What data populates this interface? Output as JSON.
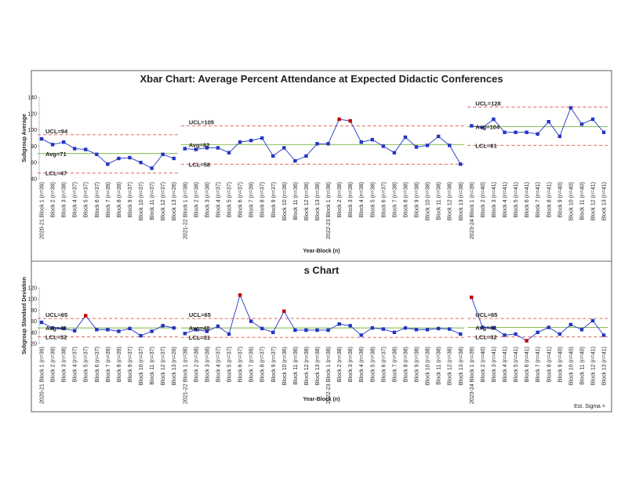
{
  "chart_data": [
    {
      "type": "line",
      "title": "Xbar Chart: Average Percent Attendance at Expected Didactic Conferences",
      "y_label": "Subgroup Average",
      "x_label": "Year-Block (n)",
      "ylim": [
        40,
        140
      ],
      "yticks": [
        40,
        60,
        80,
        100,
        120,
        140
      ],
      "color": "#2236c4",
      "flag_color": "#c00000",
      "limit_color": "#d9534f",
      "avg_color": "#7cb342",
      "segments": [
        {
          "categories": [
            "2020-21 Block 1 (n=39)",
            "Block 2 (n=39)",
            "Block 3 (n=38)",
            "Block 4 (n=37)",
            "Block 5 (n=37)",
            "Block 6 (n=37)",
            "Block 7 (n=39)",
            "Block 8 (n=39)",
            "Block 9 (n=37)",
            "Block 10 (n=37)",
            "Block 11 (n=37)",
            "Block 12 (n=37)",
            "Block 13 (n=26)"
          ],
          "values": [
            89,
            82,
            85,
            77,
            76,
            70,
            58,
            65,
            66,
            60,
            53,
            70,
            65
          ],
          "ucl": 94,
          "ucl_label": "UCL=94",
          "avg": 71,
          "avg_label": "Avg=71",
          "lcl": 47,
          "lcl_label": "LCL=47"
        },
        {
          "categories": [
            "2021-22 Block 1 (n=38)",
            "Block 2 (n=38)",
            "Block 3 (n=38)",
            "Block 4 (n=37)",
            "Block 5 (n=37)",
            "Block 6 (n=37)",
            "Block 7 (n=39)",
            "Block 8 (n=37)",
            "Block 9 (n=37)",
            "Block 10 (n=36)",
            "Block 11 (n=36)",
            "Block 12 (n=38)",
            "Block 13 (n=38)",
            "2022-23 Block 1 (n=38)",
            "Block 2 (n=38)",
            "Block 3 (n=38)",
            "Block 4 (n=38)",
            "Block 5 (n=38)",
            "Block 6 (n=37)",
            "Block 7 (n=38)",
            "Block 8 (n=38)",
            "Block 9 (n=38)",
            "Block 10 (n=38)",
            "Block 11 (n=38)",
            "Block 12 (n=38)",
            "Block 13 (n=38)"
          ],
          "values": [
            77,
            76,
            78,
            78,
            72,
            85,
            87,
            90,
            68,
            78,
            62,
            68,
            83,
            83,
            113,
            111,
            85,
            88,
            80,
            72,
            91,
            79,
            81,
            92,
            81,
            58
          ],
          "ucl": 105,
          "ucl_label": "UCL=105",
          "avg": 82,
          "avg_label": "Avg=82",
          "lcl": 58,
          "lcl_label": "LCL=58"
        },
        {
          "categories": [
            "2023-24 Block 1 (n=39)",
            "Block 2 (n=40)",
            "Block 3 (n=41)",
            "Block 4 (n=41)",
            "Block 5 (n=41)",
            "Block 6 (n=41)",
            "Block 7 (n=41)",
            "Block 8 (n=41)",
            "Block 9 (n=40)",
            "Block 10 (n=40)",
            "Block 11 (n=40)",
            "Block 12 (n=41)",
            "Block 13 (n=41)"
          ],
          "values": [
            105,
            103,
            113,
            97,
            97,
            97,
            95,
            110,
            92,
            127,
            107,
            113,
            97
          ],
          "ucl": 128,
          "ucl_label": "UCL=128",
          "avg": 104,
          "avg_label": "Avg=104",
          "lcl": 81,
          "lcl_label": "LCL=81"
        }
      ]
    },
    {
      "type": "line",
      "title": "s Chart",
      "y_label": "Subgroup Standard Deviation",
      "x_label": "Year-Block (n)",
      "ylim": [
        20,
        120
      ],
      "yticks": [
        20,
        40,
        60,
        80,
        100,
        120
      ],
      "color": "#2236c4",
      "flag_color": "#c00000",
      "limit_color": "#d9534f",
      "avg_color": "#7cb342",
      "segments": [
        {
          "categories": [
            "2020-21 Block 1 (n=39)",
            "Block 2 (n=39)",
            "Block 3 (n=38)",
            "Block 4 (n=37)",
            "Block 5 (n=37)",
            "Block 6 (n=37)",
            "Block 7 (n=39)",
            "Block 8 (n=39)",
            "Block 9 (n=37)",
            "Block 10 (n=37)",
            "Block 11 (n=37)",
            "Block 12 (n=37)",
            "Block 13 (n=26)"
          ],
          "values": [
            58,
            48,
            47,
            43,
            70,
            45,
            45,
            42,
            47,
            34,
            42,
            52,
            48
          ],
          "ucl": 65,
          "ucl_label": "UCL=65",
          "avg": 48,
          "avg_label": "Avg=48",
          "lcl": 32,
          "lcl_label": "LCL=32"
        },
        {
          "categories": [
            "2021-22 Block 1 (n=38)",
            "Block 2 (n=38)",
            "Block 3 (n=38)",
            "Block 4 (n=37)",
            "Block 5 (n=37)",
            "Block 6 (n=37)",
            "Block 7 (n=39)",
            "Block 8 (n=37)",
            "Block 9 (n=37)",
            "Block 10 (n=36)",
            "Block 11 (n=36)",
            "Block 12 (n=38)",
            "Block 13 (n=38)",
            "2022-23 Block 1 (n=38)",
            "Block 2 (n=38)",
            "Block 3 (n=38)",
            "Block 4 (n=38)",
            "Block 5 (n=38)",
            "Block 6 (n=37)",
            "Block 7 (n=38)",
            "Block 8 (n=38)",
            "Block 9 (n=38)",
            "Block 10 (n=38)",
            "Block 11 (n=38)",
            "Block 12 (n=38)",
            "Block 13 (n=38)"
          ],
          "values": [
            38,
            45,
            42,
            51,
            37,
            107,
            60,
            47,
            40,
            78,
            44,
            44,
            44,
            44,
            55,
            52,
            35,
            48,
            46,
            40,
            48,
            45,
            45,
            47,
            46,
            37
          ],
          "ucl": 65,
          "ucl_label": "UCL=65",
          "avg": 48,
          "avg_label": "Avg=48",
          "lcl": 31,
          "lcl_label": "LCL=31"
        },
        {
          "categories": [
            "2023-24 Block 1 (n=39)",
            "Block 2 (n=40)",
            "Block 3 (n=41)",
            "Block 4 (n=41)",
            "Block 5 (n=41)",
            "Block 6 (n=41)",
            "Block 7 (n=41)",
            "Block 8 (n=41)",
            "Block 9 (n=40)",
            "Block 10 (n=40)",
            "Block 11 (n=40)",
            "Block 12 (n=41)",
            "Block 13 (n=41)"
          ],
          "values": [
            103,
            49,
            48,
            35,
            37,
            25,
            40,
            49,
            37,
            54,
            45,
            61,
            35
          ],
          "ucl": 65,
          "ucl_label": "UCL=65",
          "avg": 49,
          "avg_label": "Avg=49",
          "lcl": 32,
          "lcl_label": "LCL=32"
        }
      ]
    }
  ],
  "footer": "Est. Sigma ="
}
